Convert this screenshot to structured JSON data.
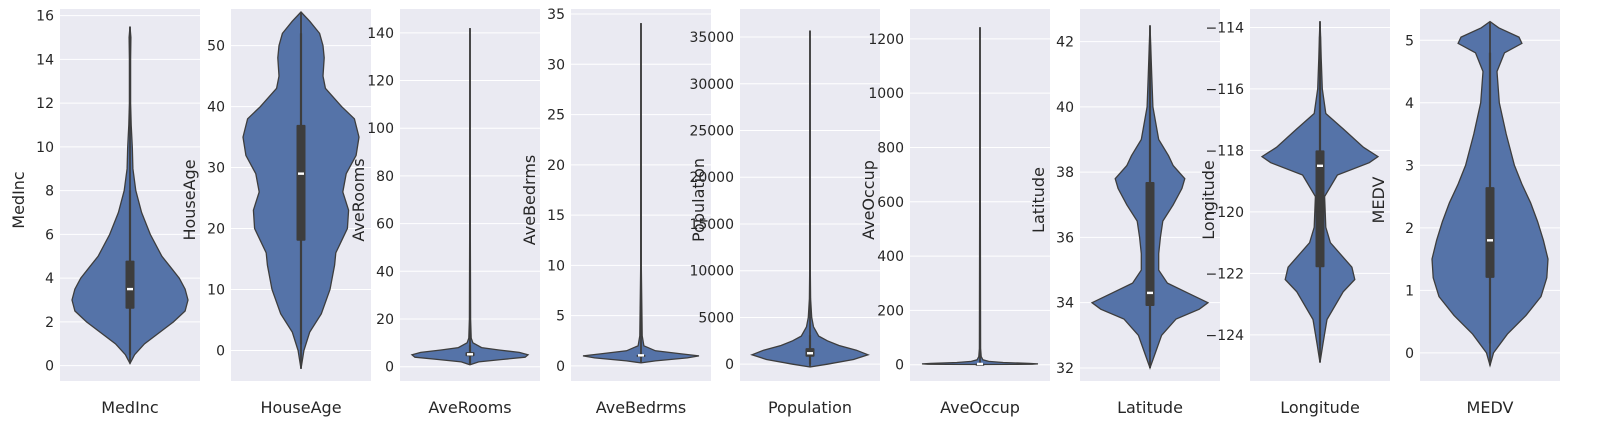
{
  "style": {
    "axes_background": "#eaeaf2",
    "grid_color": "#ffffff",
    "violin_fill": "#5573a8",
    "violin_edge": "#3d3d3d",
    "box_color": "#3d3d3d",
    "median_color": "#ffffff",
    "text_color": "#262626"
  },
  "chart_data": [
    {
      "type": "violin",
      "xlabel": "MedInc",
      "ylabel": "MedInc",
      "yticks": [
        0,
        2,
        4,
        6,
        8,
        10,
        12,
        14,
        16
      ],
      "ylim": [
        -0.7,
        16.3
      ],
      "min": 0.1,
      "max": 15.5,
      "q1": 2.6,
      "median": 3.5,
      "q3": 4.8,
      "whisker_low": 0.5,
      "whisker_high": 8.0,
      "density": [
        [
          0.1,
          0.0
        ],
        [
          0.5,
          0.08
        ],
        [
          1.0,
          0.25
        ],
        [
          1.5,
          0.5
        ],
        [
          2.0,
          0.75
        ],
        [
          2.5,
          0.95
        ],
        [
          3.0,
          1.0
        ],
        [
          3.5,
          0.95
        ],
        [
          4.0,
          0.85
        ],
        [
          4.5,
          0.7
        ],
        [
          5.0,
          0.55
        ],
        [
          6.0,
          0.35
        ],
        [
          7.0,
          0.2
        ],
        [
          8.0,
          0.1
        ],
        [
          9.0,
          0.05
        ],
        [
          10.0,
          0.04
        ],
        [
          11.0,
          0.02
        ],
        [
          12.0,
          0.01
        ],
        [
          14.0,
          0.01
        ],
        [
          15.0,
          0.015
        ],
        [
          15.5,
          0.0
        ]
      ]
    },
    {
      "type": "violin",
      "xlabel": "HouseAge",
      "ylabel": "HouseAge",
      "yticks": [
        0,
        10,
        20,
        30,
        40,
        50
      ],
      "ylim": [
        -5,
        56
      ],
      "min": -3,
      "max": 55.5,
      "q1": 18,
      "median": 29,
      "q3": 37,
      "whisker_low": 1,
      "whisker_high": 52,
      "density": [
        [
          -3,
          0.0
        ],
        [
          0,
          0.05
        ],
        [
          3,
          0.15
        ],
        [
          6,
          0.35
        ],
        [
          10,
          0.5
        ],
        [
          14,
          0.58
        ],
        [
          16,
          0.6
        ],
        [
          18,
          0.7
        ],
        [
          20,
          0.8
        ],
        [
          23,
          0.82
        ],
        [
          26,
          0.72
        ],
        [
          29,
          0.78
        ],
        [
          32,
          0.95
        ],
        [
          35,
          1.0
        ],
        [
          38,
          0.92
        ],
        [
          40,
          0.7
        ],
        [
          43,
          0.42
        ],
        [
          45,
          0.38
        ],
        [
          48,
          0.4
        ],
        [
          50,
          0.38
        ],
        [
          52,
          0.32
        ],
        [
          54,
          0.15
        ],
        [
          55.5,
          0.0
        ]
      ]
    },
    {
      "type": "violin",
      "xlabel": "AveRooms",
      "ylabel": "AveRooms",
      "yticks": [
        0,
        20,
        40,
        60,
        80,
        100,
        120,
        140
      ],
      "ylim": [
        -6,
        150
      ],
      "min": 0.8,
      "max": 142,
      "q1": 4.4,
      "median": 5.2,
      "q3": 6.1,
      "whisker_low": 1.5,
      "whisker_high": 9,
      "density": [
        [
          0.8,
          0.0
        ],
        [
          2,
          0.15
        ],
        [
          3,
          0.55
        ],
        [
          4,
          0.95
        ],
        [
          5,
          1.0
        ],
        [
          6,
          0.85
        ],
        [
          7,
          0.5
        ],
        [
          8,
          0.2
        ],
        [
          10,
          0.05
        ],
        [
          12,
          0.02
        ],
        [
          20,
          0.01
        ],
        [
          60,
          0.005
        ],
        [
          142,
          0.0
        ]
      ]
    },
    {
      "type": "violin",
      "xlabel": "AveBedrms",
      "ylabel": "AveBedrms",
      "yticks": [
        0,
        5,
        10,
        15,
        20,
        25,
        30,
        35
      ],
      "ylim": [
        -1.5,
        35.5
      ],
      "min": 0.3,
      "max": 34.1,
      "q1": 1.0,
      "median": 1.05,
      "q3": 1.1,
      "whisker_low": 0.8,
      "whisker_high": 1.3,
      "density": [
        [
          0.3,
          0.0
        ],
        [
          0.5,
          0.25
        ],
        [
          0.8,
          0.8
        ],
        [
          1.0,
          1.0
        ],
        [
          1.2,
          0.7
        ],
        [
          1.5,
          0.25
        ],
        [
          2.0,
          0.05
        ],
        [
          3.0,
          0.02
        ],
        [
          10.0,
          0.005
        ],
        [
          34.1,
          0.0
        ]
      ]
    },
    {
      "type": "violin",
      "xlabel": "Population",
      "ylabel": "Population",
      "yticks": [
        0,
        5000,
        10000,
        15000,
        20000,
        25000,
        30000,
        35000
      ],
      "ylim": [
        -1800,
        38000
      ],
      "min": -300,
      "max": 35700,
      "q1": 790,
      "median": 1170,
      "q3": 1720,
      "whisker_low": 0,
      "whisker_high": 3100,
      "density": [
        [
          -300,
          0.0
        ],
        [
          0,
          0.3
        ],
        [
          500,
          0.75
        ],
        [
          1000,
          1.0
        ],
        [
          1500,
          0.8
        ],
        [
          2000,
          0.5
        ],
        [
          2500,
          0.3
        ],
        [
          3000,
          0.15
        ],
        [
          4000,
          0.06
        ],
        [
          5000,
          0.03
        ],
        [
          7000,
          0.01
        ],
        [
          10000,
          0.005
        ],
        [
          35700,
          0.0
        ]
      ]
    },
    {
      "type": "violin",
      "xlabel": "AveOccup",
      "ylabel": "AveOccup",
      "yticks": [
        0,
        200,
        400,
        600,
        800,
        1000,
        1200
      ],
      "ylim": [
        -60,
        1310
      ],
      "min": 0.7,
      "max": 1243,
      "q1": 2.4,
      "median": 2.8,
      "q3": 3.3,
      "whisker_low": 1.0,
      "whisker_high": 5.0,
      "density": [
        [
          0.7,
          0.0
        ],
        [
          1,
          0.55
        ],
        [
          2,
          0.9
        ],
        [
          3,
          1.0
        ],
        [
          5,
          0.85
        ],
        [
          8,
          0.4
        ],
        [
          12,
          0.15
        ],
        [
          18,
          0.05
        ],
        [
          30,
          0.02
        ],
        [
          60,
          0.01
        ],
        [
          1243,
          0.0
        ]
      ]
    },
    {
      "type": "violin",
      "xlabel": "Latitude",
      "ylabel": "Latitude",
      "yticks": [
        32,
        34,
        36,
        38,
        40,
        42
      ],
      "ylim": [
        31.6,
        43.0
      ],
      "min": 32.0,
      "max": 42.5,
      "q1": 33.9,
      "median": 34.3,
      "q3": 37.7,
      "whisker_low": 32.5,
      "whisker_high": 41.9,
      "density": [
        [
          32.0,
          0.0
        ],
        [
          32.5,
          0.1
        ],
        [
          33.0,
          0.2
        ],
        [
          33.5,
          0.45
        ],
        [
          33.8,
          0.85
        ],
        [
          34.0,
          1.0
        ],
        [
          34.3,
          0.65
        ],
        [
          34.6,
          0.3
        ],
        [
          35.0,
          0.15
        ],
        [
          35.5,
          0.15
        ],
        [
          36.0,
          0.18
        ],
        [
          36.5,
          0.22
        ],
        [
          37.0,
          0.4
        ],
        [
          37.5,
          0.55
        ],
        [
          37.8,
          0.6
        ],
        [
          38.2,
          0.4
        ],
        [
          38.5,
          0.32
        ],
        [
          39.0,
          0.15
        ],
        [
          40.0,
          0.05
        ],
        [
          41.0,
          0.03
        ],
        [
          42.0,
          0.01
        ],
        [
          42.5,
          0.0
        ]
      ]
    },
    {
      "type": "violin",
      "xlabel": "Longitude",
      "ylabel": "Longitude",
      "yticks": [
        -124,
        -122,
        -120,
        -118,
        -116,
        -114
      ],
      "ylim": [
        -125.5,
        -113.4
      ],
      "min": -124.9,
      "max": -113.8,
      "q1": -121.8,
      "median": -118.5,
      "q3": -118.0,
      "whisker_low": -124.35,
      "whisker_high": -114.3,
      "density": [
        [
          -124.9,
          0.0
        ],
        [
          -124.3,
          0.05
        ],
        [
          -123.5,
          0.12
        ],
        [
          -122.6,
          0.4
        ],
        [
          -122.2,
          0.6
        ],
        [
          -121.8,
          0.55
        ],
        [
          -121.0,
          0.18
        ],
        [
          -120.5,
          0.1
        ],
        [
          -119.5,
          0.08
        ],
        [
          -118.8,
          0.3
        ],
        [
          -118.4,
          0.85
        ],
        [
          -118.2,
          1.0
        ],
        [
          -117.9,
          0.75
        ],
        [
          -117.3,
          0.4
        ],
        [
          -116.8,
          0.1
        ],
        [
          -116.0,
          0.04
        ],
        [
          -115.0,
          0.02
        ],
        [
          -114.3,
          0.01
        ],
        [
          -113.8,
          0.0
        ]
      ]
    },
    {
      "type": "violin",
      "xlabel": "MEDV",
      "ylabel": "MEDV",
      "yticks": [
        0,
        1,
        2,
        3,
        4,
        5
      ],
      "ylim": [
        -0.45,
        5.5
      ],
      "min": -0.2,
      "max": 5.3,
      "q1": 1.2,
      "median": 1.8,
      "q3": 2.65,
      "whisker_low": 0.15,
      "whisker_high": 4.8,
      "density": [
        [
          -0.2,
          0.0
        ],
        [
          0,
          0.06
        ],
        [
          0.3,
          0.3
        ],
        [
          0.6,
          0.62
        ],
        [
          0.9,
          0.88
        ],
        [
          1.2,
          0.98
        ],
        [
          1.5,
          1.0
        ],
        [
          1.8,
          0.92
        ],
        [
          2.1,
          0.82
        ],
        [
          2.4,
          0.7
        ],
        [
          2.7,
          0.55
        ],
        [
          3.0,
          0.42
        ],
        [
          3.5,
          0.28
        ],
        [
          4.0,
          0.16
        ],
        [
          4.5,
          0.12
        ],
        [
          4.8,
          0.25
        ],
        [
          4.95,
          0.55
        ],
        [
          5.05,
          0.5
        ],
        [
          5.2,
          0.15
        ],
        [
          5.3,
          0.0
        ]
      ]
    }
  ]
}
